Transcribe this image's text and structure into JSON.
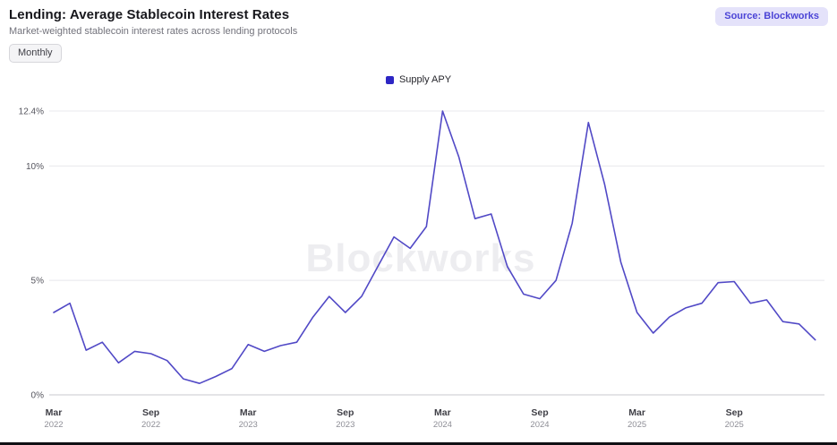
{
  "header": {
    "title": "Lending: Average Stablecoin Interest Rates",
    "subtitle": "Market-weighted stablecoin interest rates across lending protocols",
    "frequency_button_label": "Monthly",
    "source_badge_label": "Source: Blockworks"
  },
  "legend": {
    "series_label": "Supply APY"
  },
  "watermark_text": "Blockworks",
  "colors": {
    "line": "#5149c6",
    "legend_marker": "#2d26c4",
    "badge_bg": "#e4e2fa",
    "badge_text": "#4b44d6",
    "gridline": "#e8e8ec",
    "axis_line": "#c9c9cf",
    "y_label": "#55555e",
    "x_month_label": "#3f3f46",
    "x_year_label": "#8e8e96",
    "watermark": "#ededf0"
  },
  "chart_data": {
    "type": "line",
    "title": "Lending: Average Stablecoin Interest Rates",
    "xlabel": "",
    "ylabel": "",
    "unit": "%",
    "ylim": [
      0,
      12.4
    ],
    "grid": "horizontal",
    "legend_position": "top-center",
    "x": [
      "Mar 2022",
      "Apr 2022",
      "May 2022",
      "Jun 2022",
      "Jul 2022",
      "Aug 2022",
      "Sep 2022",
      "Oct 2022",
      "Nov 2022",
      "Dec 2022",
      "Jan 2023",
      "Feb 2023",
      "Mar 2023",
      "Apr 2023",
      "May 2023",
      "Jun 2023",
      "Jul 2023",
      "Aug 2023",
      "Sep 2023",
      "Oct 2023",
      "Nov 2023",
      "Dec 2023",
      "Jan 2024",
      "Feb 2024",
      "Mar 2024",
      "Apr 2024",
      "May 2024",
      "Jun 2024",
      "Jul 2024",
      "Aug 2024",
      "Sep 2024",
      "Oct 2024",
      "Nov 2024",
      "Dec 2024",
      "Jan 2025",
      "Feb 2025",
      "Mar 2025",
      "Apr 2025",
      "May 2025",
      "Jun 2025",
      "Jul 2025",
      "Aug 2025",
      "Sep 2025",
      "Oct 2025",
      "Nov 2025",
      "Dec 2025",
      "Jan 2026",
      "Feb 2026"
    ],
    "series": [
      {
        "name": "Supply APY",
        "values": [
          3.6,
          4.0,
          1.95,
          2.3,
          1.4,
          1.9,
          1.8,
          1.5,
          0.7,
          0.5,
          0.8,
          1.15,
          2.2,
          1.9,
          2.15,
          2.3,
          3.4,
          4.3,
          3.6,
          4.3,
          5.6,
          6.9,
          6.4,
          7.35,
          12.4,
          10.4,
          7.7,
          7.9,
          5.6,
          4.4,
          4.2,
          5.0,
          7.5,
          11.9,
          9.2,
          5.8,
          3.6,
          2.7,
          3.4,
          3.8,
          4.0,
          4.9,
          4.95,
          4.0,
          4.15,
          3.2,
          3.1,
          2.4
        ]
      }
    ],
    "y_ticks": [
      {
        "label": "0%",
        "value": 0
      },
      {
        "label": "5%",
        "value": 5
      },
      {
        "label": "10%",
        "value": 10
      },
      {
        "label": "12.4%",
        "value": 12.4
      }
    ],
    "x_ticks": [
      {
        "month": "Mar",
        "year": "2022",
        "index": 0
      },
      {
        "month": "Sep",
        "year": "2022",
        "index": 6
      },
      {
        "month": "Mar",
        "year": "2023",
        "index": 12
      },
      {
        "month": "Sep",
        "year": "2023",
        "index": 18
      },
      {
        "month": "Mar",
        "year": "2024",
        "index": 24
      },
      {
        "month": "Sep",
        "year": "2024",
        "index": 30
      },
      {
        "month": "Mar",
        "year": "2025",
        "index": 36
      },
      {
        "month": "Sep",
        "year": "2025",
        "index": 42
      }
    ]
  }
}
